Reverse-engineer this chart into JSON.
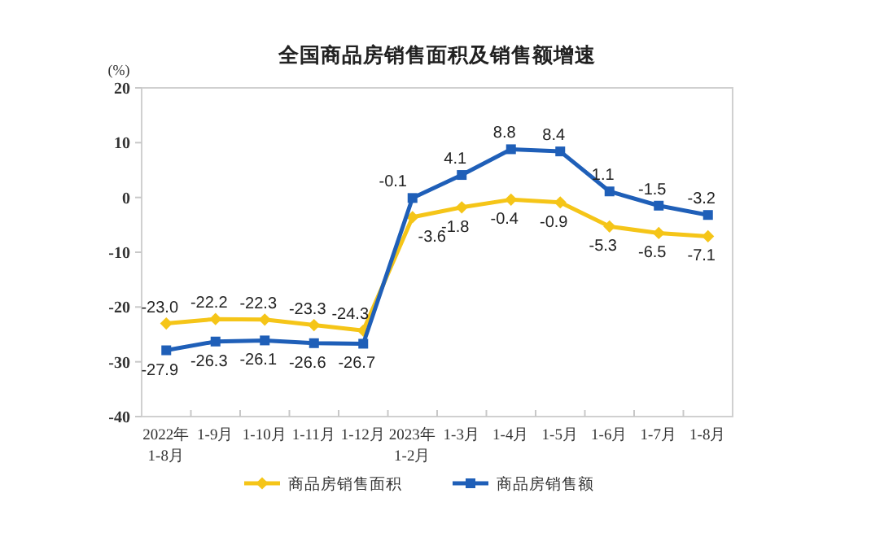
{
  "chart_data": {
    "type": "line",
    "title": "全国商品房销售面积及销售额增速",
    "ylabel": "(%)",
    "categories": [
      "2022年\n1-8月",
      "1-9月",
      "1-10月",
      "1-11月",
      "1-12月",
      "2023年\n1-2月",
      "1-3月",
      "1-4月",
      "1-5月",
      "1-6月",
      "1-7月",
      "1-8月"
    ],
    "series": [
      {
        "name": "商品房销售面积",
        "color": "#f5c518",
        "marker": "diamond",
        "values": [
          -23.0,
          -22.2,
          -22.3,
          -23.3,
          -24.3,
          -3.6,
          -1.8,
          -0.4,
          -0.9,
          -5.3,
          -6.5,
          -7.1
        ],
        "value_labels": [
          "-23.0",
          "-22.2",
          "-22.3",
          "-23.3",
          "-24.3",
          "-3.6",
          "-1.8",
          "-0.4",
          "-0.9",
          "-5.3",
          "-6.5",
          "-7.1"
        ]
      },
      {
        "name": "商品房销售额",
        "color": "#1f5fb8",
        "marker": "square",
        "values": [
          -27.9,
          -26.3,
          -26.1,
          -26.6,
          -26.7,
          -0.1,
          4.1,
          8.8,
          8.4,
          1.1,
          -1.5,
          -3.2
        ],
        "value_labels": [
          "-27.9",
          "-26.3",
          "-26.1",
          "-26.6",
          "-26.7",
          "-0.1",
          "4.1",
          "8.8",
          "8.4",
          "1.1",
          "-1.5",
          "-3.2"
        ]
      }
    ],
    "ylim": [
      -40,
      20
    ],
    "yticks": [
      -40,
      -30,
      -20,
      -10,
      0,
      10,
      20
    ],
    "legend": "bottom"
  }
}
